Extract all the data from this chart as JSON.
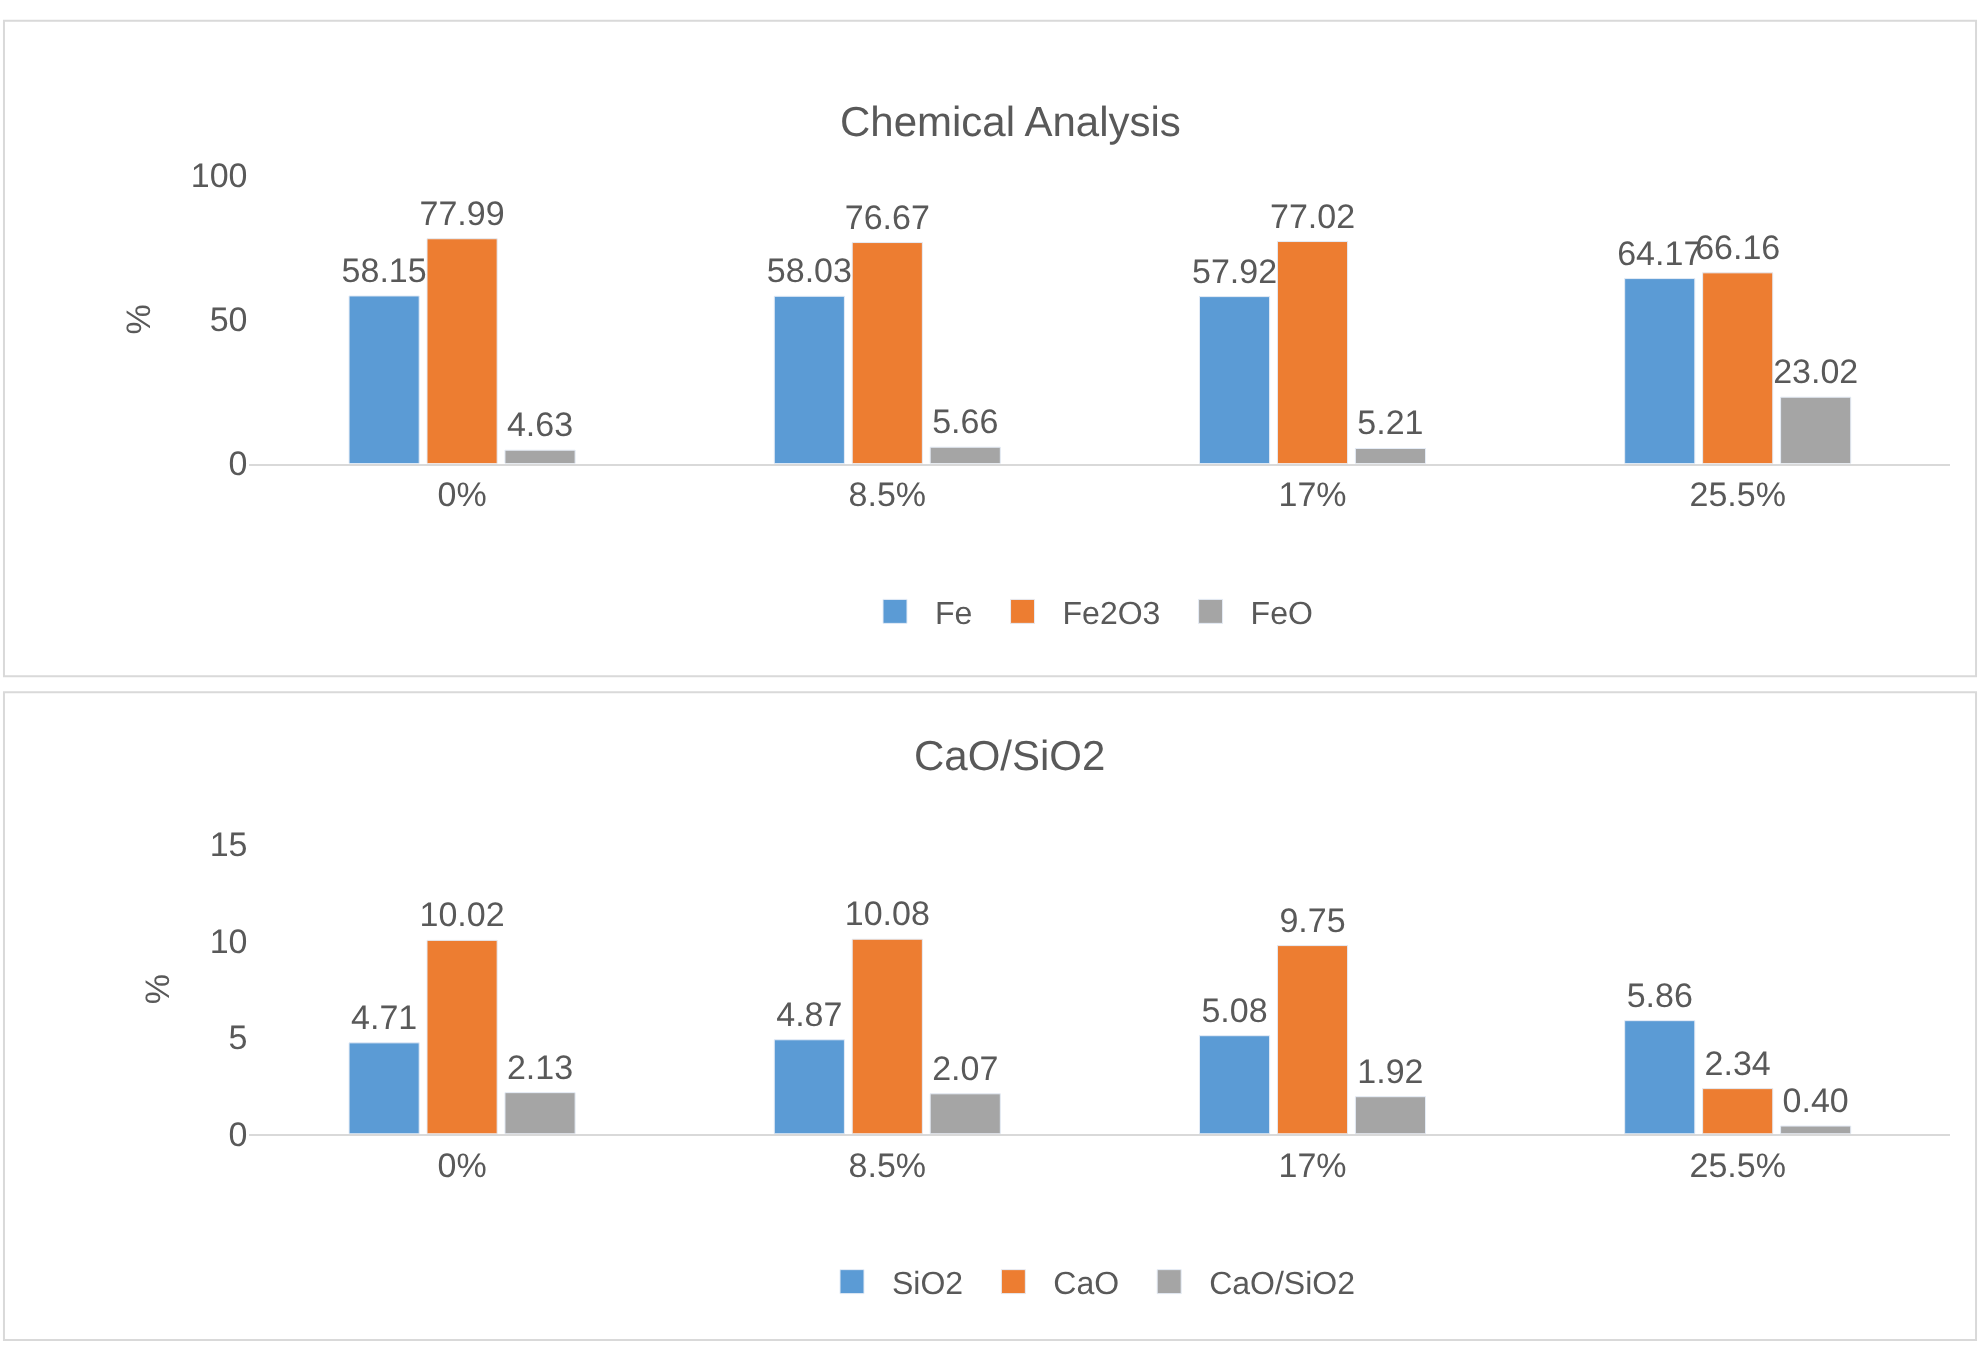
{
  "chart_data": [
    {
      "type": "bar",
      "title": "Chemical Analysis",
      "ylabel": "%",
      "categories": [
        "0%",
        "8.5%",
        "17%",
        "25.5%"
      ],
      "series": [
        {
          "name": "Fe",
          "color": "#5b9bd5",
          "values": [
            58.15,
            58.03,
            57.92,
            64.17
          ]
        },
        {
          "name": "Fe2O3",
          "color": "#ed7d31",
          "values": [
            77.99,
            76.67,
            77.02,
            66.16
          ]
        },
        {
          "name": "FeO",
          "color": "#a5a5a5",
          "values": [
            4.63,
            5.66,
            5.21,
            23.02
          ]
        }
      ],
      "ylim": [
        0,
        100
      ],
      "yticks": [
        0,
        50,
        100
      ],
      "legend": "bottom",
      "data_labels": true
    },
    {
      "type": "bar",
      "title": "CaO/SiO2",
      "ylabel": "%",
      "categories": [
        "0%",
        "8.5%",
        "17%",
        "25.5%"
      ],
      "series": [
        {
          "name": "SiO2",
          "color": "#5b9bd5",
          "values": [
            4.71,
            4.87,
            5.08,
            5.86
          ]
        },
        {
          "name": "CaO",
          "color": "#ed7d31",
          "values": [
            10.02,
            10.08,
            9.75,
            2.34
          ]
        },
        {
          "name": "CaO/SiO2",
          "color": "#a5a5a5",
          "values": [
            2.13,
            2.07,
            1.92,
            0.4
          ],
          "value_labels": [
            "2.13",
            "2.07",
            "1.92",
            "0.40"
          ]
        }
      ],
      "ylim": [
        0,
        15
      ],
      "yticks": [
        0,
        5,
        10,
        15
      ],
      "legend": "bottom",
      "data_labels": true
    }
  ]
}
